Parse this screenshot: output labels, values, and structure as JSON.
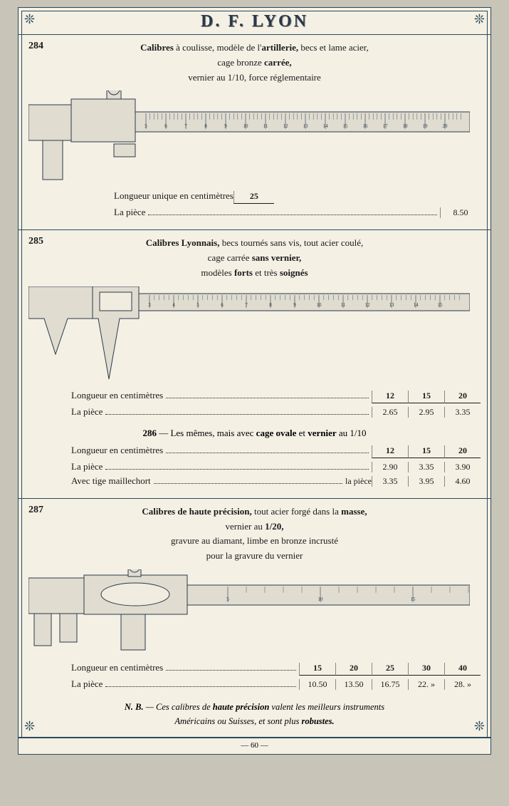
{
  "header": {
    "title": "D. F. LYON"
  },
  "footer": {
    "page_num": "— 60 —"
  },
  "item284": {
    "num": "284",
    "desc_parts": {
      "t1": "Calibres ",
      "b1": "à coulisse, modèle de l'",
      "b2": "artillerie,",
      "t2": " becs et lame acier,",
      "line2a": "cage bronze ",
      "line2b": "carrée,",
      "line3": "vernier au 1/10, force réglementaire"
    },
    "spec": {
      "len_label": "Longueur unique en centimètres",
      "len_val": "25",
      "price_label": "La pièce",
      "price_val": "8.50"
    },
    "ruler_ticks": [
      "5",
      "6",
      "7",
      "8",
      "9",
      "10",
      "11",
      "12",
      "13",
      "14",
      "15",
      "16",
      "17",
      "18",
      "19",
      "20"
    ]
  },
  "item285": {
    "num": "285",
    "desc_parts": {
      "b1": "Calibres Lyonnais,",
      "t1": " becs tournés sans vis, tout acier coulé,",
      "line2a": "cage carrée ",
      "line2b": "sans vernier,",
      "line3a": "modèles ",
      "line3b": "forts",
      "line3c": " et très ",
      "line3d": "soignés"
    },
    "spec": {
      "len_label": "Longueur en centimètres",
      "lens": [
        "12",
        "15",
        "20"
      ],
      "price_label": "La pièce",
      "prices": [
        "2.65",
        "2.95",
        "3.35"
      ]
    },
    "ruler_ticks": [
      "3",
      "4",
      "5",
      "6",
      "7",
      "8",
      "9",
      "10",
      "11",
      "12",
      "13",
      "14",
      "15"
    ]
  },
  "item286": {
    "num": "286",
    "desc_parts": {
      "t1": " — Les mêmes, mais avec ",
      "b1": "cage ovale",
      "t2": " et ",
      "b2": "vernier",
      "t3": " au 1/10"
    },
    "spec": {
      "len_label": "Longueur en centimètres",
      "lens": [
        "12",
        "15",
        "20"
      ],
      "price_label": "La pièce",
      "prices": [
        "2.90",
        "3.35",
        "3.90"
      ],
      "extra_label": "Avec tige maillechort",
      "extra_suffix": "la pièce",
      "extras": [
        "3.35",
        "3.95",
        "4.60"
      ]
    }
  },
  "item287": {
    "num": "287",
    "desc_parts": {
      "b1": "Calibres de haute précision,",
      "t1": " tout acier forgé dans la ",
      "b2": "masse,",
      "line2a": "vernier au ",
      "line2b": "1/20,",
      "line3": "gravure au diamant, limbe en bronze incrusté",
      "line4": "pour la gravure du vernier"
    },
    "spec": {
      "len_label": "Longueur en centimètres",
      "lens": [
        "15",
        "20",
        "25",
        "30",
        "40"
      ],
      "price_label": "La pièce",
      "prices": [
        "10.50",
        "13.50",
        "16.75",
        "22. »",
        "28. »"
      ]
    },
    "nb": {
      "pre": "N. B.",
      "t1": " — Ces calibres de ",
      "b1": "haute précision",
      "t2": " valent les meilleurs instruments",
      "line2a": "Américains ou Suisses, et sont plus ",
      "line2b": "robustes."
    },
    "ruler_ticks": [
      "5",
      "10",
      "15"
    ]
  },
  "colors": {
    "ink": "#2a3a4a",
    "rule": "#2a4a5a",
    "paper": "#f4f0e4",
    "steel": "#d8d4c8",
    "steel_dark": "#b8b4a8"
  }
}
